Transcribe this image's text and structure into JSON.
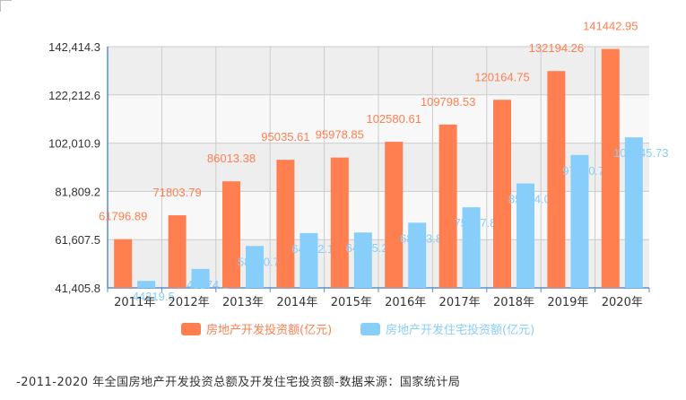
{
  "chart_data": {
    "type": "bar",
    "categories": [
      "2011年",
      "2012年",
      "2013年",
      "2014年",
      "2015年",
      "2016年",
      "2017年",
      "2018年",
      "2019年",
      "2020年"
    ],
    "series": [
      {
        "name": "房地产开发投资额(亿元)",
        "values": [
          61796.89,
          71803.79,
          86013.38,
          95035.61,
          95978.85,
          102580.61,
          109798.53,
          120164.75,
          132194.26,
          141442.95
        ],
        "labels": [
          "61796.89",
          "71803.79",
          "86013.38",
          "95035.61",
          "95978.85",
          "102580.61",
          "109798.53",
          "120164.75",
          "132194.26",
          "141442.95"
        ],
        "color": "#ff7f50"
      },
      {
        "name": "房地产开发住宅投资额(亿元)",
        "values": [
          44319.5,
          49374.2,
          58950.76,
          64352.15,
          64595.24,
          68703.87,
          75147.88,
          85124.03,
          97070.75,
          104445.73
        ],
        "labels": [
          "44319.5",
          "49374.2",
          "58950.76",
          "64352.15",
          "64595.24",
          "68703.87",
          "75147.88",
          "85124.03",
          "97070.75",
          "104445.73"
        ],
        "color": "#87cefa"
      }
    ],
    "yticks": [
      "41,405.8",
      "61,607.5",
      "81,809.2",
      "102,010.9",
      "122,212.6",
      "142,414.3"
    ],
    "ylim": [
      41405.8,
      142414.3
    ],
    "grid": true,
    "legend": "bottom"
  },
  "caption": "-2011-2020 年全国房地产开发投资总额及开发住宅投资额-数据来源：国家统计局"
}
